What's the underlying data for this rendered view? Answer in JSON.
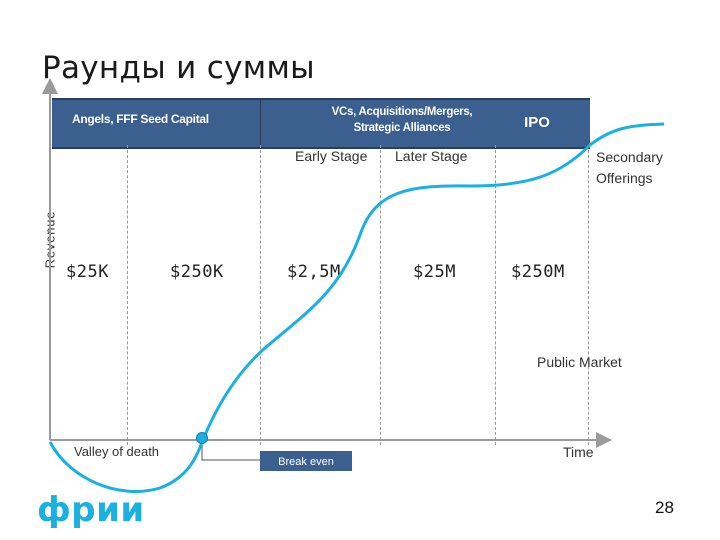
{
  "slide": {
    "title": "Раунды и суммы",
    "page_number": "28",
    "logo_text": "фрии",
    "axis": {
      "y_label": "Revenue",
      "x_label": "Time"
    },
    "band": {
      "segments": [
        "Angels, FFF Seed Capital",
        "VCs, Acquisitions/Mergers,",
        "Strategic Alliances",
        "IPO"
      ]
    },
    "stages": {
      "early": "Early Stage",
      "later": "Later Stage",
      "secondary_line1": "Secondary",
      "secondary_line2": "Offerings"
    },
    "amounts": [
      "$25K",
      "$250K",
      "$2,5M",
      "$25M",
      "$250M"
    ],
    "annotations": {
      "public_market": "Public  Market",
      "valley": "Valley of death",
      "break_even": "Break even"
    },
    "colors": {
      "curve": "#1ab0e0",
      "band": "#3b5f8f",
      "break_even_box": "#3b5f8f",
      "logo": "#1ab0e0"
    }
  }
}
